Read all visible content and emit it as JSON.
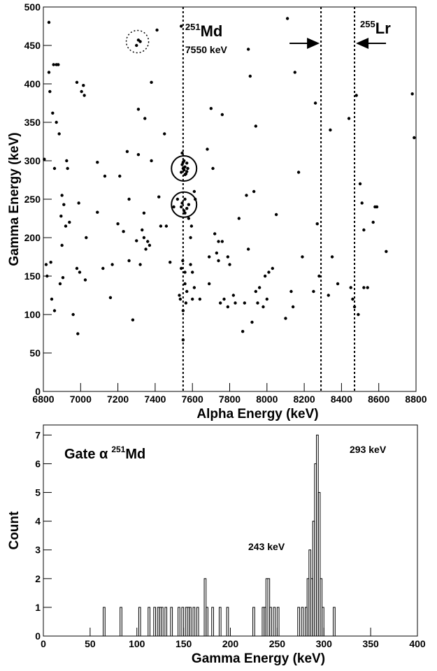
{
  "chart_data": [
    {
      "type": "scatter",
      "xlabel": "Alpha Energy (keV)",
      "ylabel": "Gamma Energy (keV)",
      "xlim": [
        6800,
        8800
      ],
      "ylim": [
        0,
        500
      ],
      "xticks": [
        6800,
        7000,
        7200,
        7400,
        7600,
        7800,
        8000,
        8200,
        8400,
        8600,
        8800
      ],
      "yticks": [
        0,
        50,
        100,
        150,
        200,
        250,
        300,
        350,
        400,
        450,
        500
      ],
      "color": "#000000",
      "x": [
        6805,
        6815,
        6820,
        6830,
        6830,
        6835,
        6840,
        6845,
        6850,
        6855,
        6860,
        6860,
        6870,
        6870,
        6880,
        6885,
        6890,
        6895,
        6900,
        6900,
        6905,
        6910,
        6920,
        6925,
        6930,
        6940,
        6960,
        6980,
        6980,
        6985,
        6990,
        6995,
        7005,
        7015,
        7020,
        7025,
        7030,
        7090,
        7090,
        7120,
        7130,
        7160,
        7170,
        7200,
        7210,
        7230,
        7250,
        7260,
        7260,
        7280,
        7300,
        7300,
        7310,
        7320,
        7310,
        7310,
        7320,
        7330,
        7340,
        7340,
        7345,
        7350,
        7360,
        7370,
        7380,
        7380,
        7410,
        7420,
        7430,
        7450,
        7460,
        7480,
        7500,
        7520,
        7530,
        7535,
        7540,
        7540,
        7545,
        7548,
        7550,
        7550,
        7545,
        7540,
        7555,
        7560,
        7550,
        7545,
        7555,
        7560,
        7550,
        7540,
        7565,
        7570,
        7560,
        7555,
        7570,
        7575,
        7560,
        7570,
        7580,
        7580,
        7590,
        7595,
        7560,
        7560,
        7570,
        7565,
        7590,
        7600,
        7610,
        7615,
        7600,
        7610,
        7640,
        7680,
        7690,
        7690,
        7700,
        7710,
        7720,
        7730,
        7740,
        7740,
        7750,
        7760,
        7760,
        7770,
        7790,
        7790,
        7800,
        7820,
        7830,
        7850,
        7870,
        7880,
        7890,
        7900,
        7900,
        7910,
        7920,
        7930,
        7940,
        7940,
        7950,
        7960,
        7980,
        7990,
        8000,
        8010,
        8030,
        8050,
        8100,
        8110,
        8130,
        8140,
        8150,
        8170,
        8190,
        8250,
        8260,
        8270,
        8280,
        8330,
        8340,
        8350,
        8380,
        8440,
        8450,
        8460,
        8470,
        8480,
        8490,
        8500,
        8510,
        8520,
        8520,
        8540,
        8570,
        8580,
        8590,
        8640,
        8780,
        8790
      ],
      "values": [
        302,
        165,
        150,
        415,
        480,
        390,
        168,
        120,
        362,
        425,
        105,
        290,
        425,
        350,
        425,
        335,
        140,
        228,
        190,
        255,
        148,
        243,
        215,
        300,
        290,
        220,
        100,
        402,
        160,
        75,
        245,
        155,
        390,
        398,
        385,
        145,
        200,
        233,
        298,
        160,
        280,
        122,
        165,
        218,
        280,
        208,
        312,
        170,
        250,
        93,
        196,
        450,
        457,
        455,
        367,
        308,
        165,
        210,
        200,
        232,
        355,
        185,
        195,
        190,
        402,
        300,
        470,
        253,
        215,
        335,
        215,
        168,
        240,
        250,
        125,
        120,
        475,
        160,
        310,
        170,
        105,
        67,
        245,
        240,
        235,
        232,
        290,
        295,
        288,
        292,
        298,
        285,
        283,
        286,
        282,
        300,
        297,
        290,
        250,
        238,
        243,
        225,
        200,
        215,
        155,
        140,
        130,
        115,
        165,
        120,
        260,
        250,
        155,
        135,
        120,
        315,
        175,
        140,
        368,
        290,
        205,
        180,
        195,
        170,
        115,
        360,
        195,
        120,
        110,
        175,
        165,
        125,
        115,
        225,
        78,
        115,
        255,
        185,
        445,
        410,
        90,
        260,
        345,
        130,
        115,
        135,
        110,
        150,
        120,
        155,
        160,
        230,
        95,
        485,
        130,
        110,
        415,
        285,
        175,
        130,
        375,
        218,
        150,
        125,
        340,
        175,
        140,
        355,
        135,
        120,
        110,
        385,
        100,
        270,
        245,
        210,
        135,
        135,
        220,
        240,
        240,
        182,
        387,
        330
      ],
      "vlines": [
        7550,
        8290,
        8470
      ],
      "highlights": [
        {
          "x": 7555,
          "y": 290,
          "dashed": false
        },
        {
          "x": 7555,
          "y": 243,
          "dashed": false
        },
        {
          "x": 7305,
          "y": 455,
          "dashed": true
        }
      ],
      "annotations": {
        "md_mass": "251",
        "md": "Md",
        "md_energy": "7550 keV",
        "lr_mass": "255",
        "lr": "Lr"
      }
    },
    {
      "type": "histogram",
      "xlabel": "Gamma Energy (keV)",
      "ylabel": "Count",
      "xlim": [
        0,
        400
      ],
      "ylim": [
        0,
        7.35
      ],
      "xticks": [
        0,
        50,
        100,
        150,
        200,
        250,
        300,
        350,
        400
      ],
      "yticks": [
        0,
        1,
        2,
        3,
        4,
        5,
        6,
        7
      ],
      "color": "#000000",
      "gate": {
        "text": "Gate α",
        "mass": "251",
        "element": "Md"
      },
      "peak_labels": [
        "293 keV",
        "243 keV"
      ],
      "bins": [
        0,
        2,
        4,
        6,
        8,
        10,
        12,
        14,
        16,
        18,
        20,
        22,
        24,
        26,
        28,
        30,
        32,
        34,
        36,
        38,
        40,
        42,
        44,
        46,
        48,
        50,
        52,
        54,
        56,
        58,
        60,
        62,
        64,
        66,
        68,
        70,
        72,
        74,
        76,
        78,
        80,
        82,
        84,
        86,
        88,
        90,
        92,
        94,
        96,
        98,
        100,
        102,
        104,
        106,
        108,
        110,
        112,
        114,
        116,
        118,
        120,
        122,
        124,
        126,
        128,
        130,
        132,
        134,
        136,
        138,
        140,
        142,
        144,
        146,
        148,
        150,
        152,
        154,
        156,
        158,
        160,
        162,
        164,
        166,
        168,
        170,
        172,
        174,
        176,
        178,
        180,
        182,
        184,
        186,
        188,
        190,
        192,
        194,
        196,
        198,
        200,
        202,
        204,
        206,
        208,
        210,
        212,
        214,
        216,
        218,
        220,
        222,
        224,
        226,
        228,
        230,
        232,
        234,
        236,
        238,
        240,
        242,
        244,
        246,
        248,
        250,
        252,
        254,
        256,
        258,
        260,
        262,
        264,
        266,
        268,
        270,
        272,
        274,
        276,
        278,
        280,
        282,
        284,
        286,
        288,
        290,
        292,
        294,
        296,
        298,
        300,
        302,
        304,
        306,
        308,
        310,
        312,
        314,
        316,
        318,
        320,
        322,
        324,
        326,
        328,
        330,
        332,
        334,
        336,
        338,
        340,
        342,
        344,
        346,
        348,
        350,
        352,
        354,
        356,
        358,
        360,
        362,
        364,
        366,
        368,
        370,
        372,
        374,
        376,
        378,
        380,
        382,
        384,
        386,
        388,
        390,
        392,
        394,
        396,
        398,
        400
      ],
      "counts": [
        0,
        0,
        0,
        0,
        0,
        0,
        0,
        0,
        0,
        0,
        0,
        0,
        0,
        0,
        0,
        0,
        0,
        0,
        0,
        0,
        0,
        0,
        0,
        0,
        0,
        0,
        0,
        0,
        0,
        0,
        0,
        0,
        1,
        0,
        0,
        0,
        0,
        0,
        0,
        0,
        0,
        1,
        0,
        0,
        0,
        0,
        0,
        0,
        0,
        0,
        0,
        1,
        0,
        0,
        0,
        0,
        1,
        0,
        0,
        1,
        0,
        1,
        1,
        1,
        0,
        1,
        0,
        0,
        1,
        0,
        0,
        0,
        1,
        0,
        1,
        0,
        1,
        1,
        1,
        0,
        1,
        0,
        1,
        0,
        0,
        0,
        2,
        1,
        0,
        0,
        1,
        0,
        0,
        0,
        1,
        0,
        0,
        0,
        1,
        0,
        0,
        0,
        0,
        0,
        0,
        0,
        0,
        0,
        0,
        0,
        0,
        0,
        1,
        0,
        0,
        0,
        0,
        1,
        1,
        2,
        2,
        1,
        0,
        1,
        0,
        1,
        0,
        0,
        0,
        0,
        0,
        0,
        0,
        0,
        0,
        0,
        1,
        0,
        1,
        0,
        1,
        2,
        3,
        2,
        4,
        6,
        7,
        5,
        2,
        1,
        0,
        0,
        0,
        0,
        0,
        1,
        0,
        0,
        0,
        0,
        0,
        0,
        0,
        0,
        0,
        0,
        0,
        0,
        0,
        0,
        0,
        0,
        0,
        0,
        0,
        0,
        0,
        0,
        0,
        0,
        0,
        0,
        0,
        0,
        0,
        0,
        0,
        0,
        0,
        0,
        0,
        0,
        0,
        0,
        0,
        0,
        0,
        0,
        0,
        0
      ]
    }
  ]
}
